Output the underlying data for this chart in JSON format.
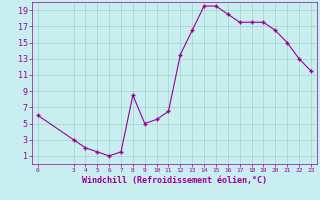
{
  "x_data": [
    0,
    3,
    4,
    5,
    6,
    7,
    8,
    9,
    10,
    11,
    12,
    13,
    14,
    15,
    16,
    17,
    18,
    19,
    20,
    21,
    22,
    23
  ],
  "y_data": [
    6,
    3,
    2,
    1.5,
    1,
    1.5,
    8.5,
    5,
    5.5,
    6.5,
    13.5,
    16.5,
    19.5,
    19.5,
    18.5,
    17.5,
    17.5,
    17.5,
    16.5,
    15,
    13,
    11.5
  ],
  "bg_color": "#c8eef0",
  "line_color": "#990099",
  "marker": "+",
  "xlabel": "Windchill (Refroidissement éolien,°C)",
  "yticks": [
    1,
    3,
    5,
    7,
    9,
    11,
    13,
    15,
    17,
    19
  ],
  "xticks": [
    0,
    3,
    4,
    5,
    6,
    7,
    8,
    9,
    10,
    11,
    12,
    13,
    14,
    15,
    16,
    17,
    18,
    19,
    20,
    21,
    22,
    23
  ],
  "ylim": [
    0,
    20
  ],
  "xlim": [
    -0.5,
    23.5
  ],
  "grid_color": "#99ccbb",
  "xlabel_color": "#990099",
  "tick_color": "#990099",
  "xlabel_fontsize": 6,
  "ytick_fontsize": 6,
  "xtick_fontsize": 4.5,
  "linewidth": 0.8,
  "markersize": 3.5
}
